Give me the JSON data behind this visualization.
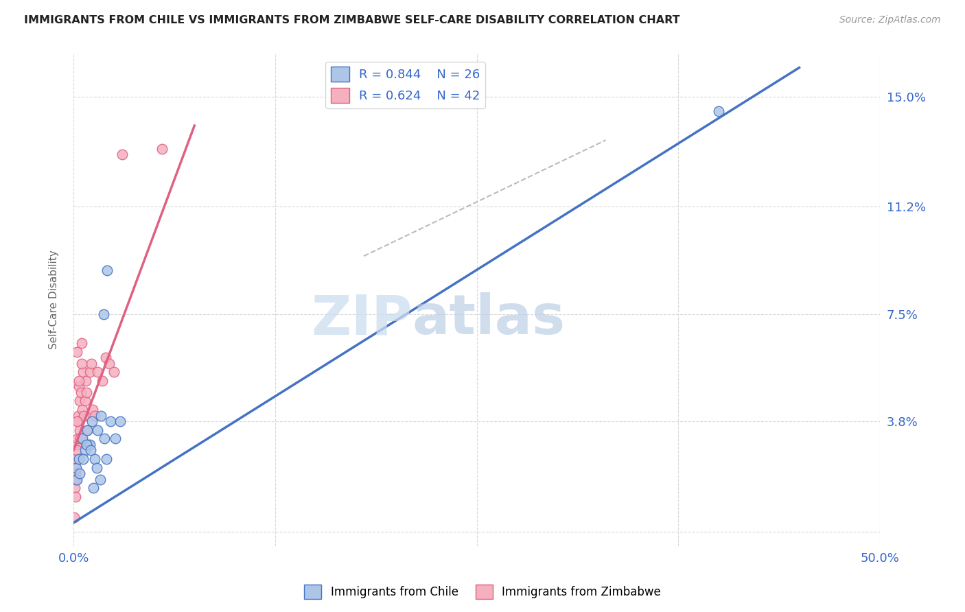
{
  "title": "IMMIGRANTS FROM CHILE VS IMMIGRANTS FROM ZIMBABWE SELF-CARE DISABILITY CORRELATION CHART",
  "source": "Source: ZipAtlas.com",
  "ylabel": "Self-Care Disability",
  "xlim": [
    0.0,
    50.0
  ],
  "ylim": [
    -0.5,
    16.5
  ],
  "yticks": [
    0.0,
    3.8,
    7.5,
    11.2,
    15.0
  ],
  "xticks": [
    0.0,
    12.5,
    25.0,
    37.5,
    50.0
  ],
  "xtick_labels": [
    "0.0%",
    "",
    "",
    "",
    "50.0%"
  ],
  "ytick_labels": [
    "",
    "3.8%",
    "7.5%",
    "11.2%",
    "15.0%"
  ],
  "chile_R": "0.844",
  "chile_N": "26",
  "zimbabwe_R": "0.624",
  "zimbabwe_N": "42",
  "chile_color": "#adc6e8",
  "zimbabwe_color": "#f5b0c0",
  "chile_line_color": "#4472c4",
  "zimbabwe_line_color": "#e06080",
  "watermark_zip": "ZIP",
  "watermark_atlas": "atlas",
  "background_color": "#ffffff",
  "grid_color": "#d8d8d8",
  "chile_x": [
    0.15,
    0.22,
    0.35,
    0.55,
    0.7,
    0.85,
    1.0,
    1.15,
    1.3,
    1.5,
    1.7,
    1.9,
    2.1,
    2.3,
    2.6,
    2.9,
    0.4,
    0.6,
    0.8,
    1.05,
    1.25,
    1.45,
    1.65,
    1.85,
    2.05,
    40.0
  ],
  "chile_y": [
    2.2,
    1.8,
    2.5,
    3.2,
    2.8,
    3.5,
    3.0,
    3.8,
    2.5,
    3.5,
    4.0,
    3.2,
    9.0,
    3.8,
    3.2,
    3.8,
    2.0,
    2.5,
    3.0,
    2.8,
    1.5,
    2.2,
    1.8,
    7.5,
    2.5,
    14.5
  ],
  "zimbabwe_x": [
    0.05,
    0.08,
    0.1,
    0.12,
    0.15,
    0.18,
    0.2,
    0.22,
    0.25,
    0.28,
    0.3,
    0.35,
    0.38,
    0.4,
    0.45,
    0.5,
    0.55,
    0.6,
    0.65,
    0.7,
    0.75,
    0.8,
    0.85,
    0.9,
    1.0,
    1.1,
    1.2,
    1.3,
    1.5,
    1.8,
    2.0,
    2.2,
    2.5,
    3.0,
    0.06,
    0.13,
    0.17,
    0.23,
    0.33,
    0.43,
    0.52,
    5.5
  ],
  "zimbabwe_y": [
    1.8,
    2.2,
    1.5,
    2.0,
    2.5,
    3.0,
    2.8,
    6.2,
    3.2,
    4.0,
    3.8,
    5.0,
    4.5,
    3.5,
    4.8,
    6.5,
    4.2,
    5.5,
    4.0,
    4.5,
    5.2,
    4.8,
    3.5,
    3.0,
    5.5,
    5.8,
    4.2,
    4.0,
    5.5,
    5.2,
    6.0,
    5.8,
    5.5,
    13.0,
    0.5,
    1.2,
    1.8,
    3.8,
    5.2,
    3.2,
    5.8,
    13.2
  ],
  "chile_line_x0": 0.0,
  "chile_line_y0": 0.3,
  "chile_line_x1": 45.0,
  "chile_line_y1": 16.0,
  "zimbabwe_line_x0": 0.0,
  "zimbabwe_line_y0": 2.8,
  "zimbabwe_line_x1": 7.5,
  "zimbabwe_line_y1": 14.0,
  "ref_line_x0": 18.0,
  "ref_line_y0": 9.5,
  "ref_line_x1": 33.0,
  "ref_line_y1": 13.5
}
